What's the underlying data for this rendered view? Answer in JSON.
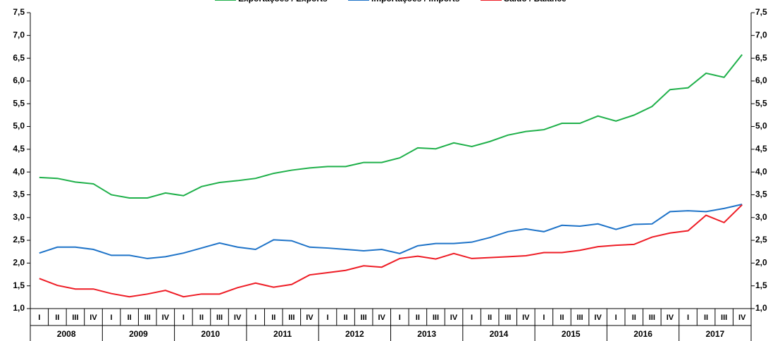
{
  "chart_data": {
    "type": "line",
    "categories": [
      "I",
      "II",
      "III",
      "IV",
      "I",
      "II",
      "III",
      "IV",
      "I",
      "II",
      "III",
      "IV",
      "I",
      "II",
      "III",
      "IV",
      "I",
      "II",
      "III",
      "IV",
      "I",
      "II",
      "III",
      "IV",
      "I",
      "II",
      "III",
      "IV",
      "I",
      "II",
      "III",
      "IV",
      "I",
      "II",
      "III",
      "IV",
      "I",
      "II",
      "III",
      "IV"
    ],
    "years": [
      "2008",
      "2009",
      "2010",
      "2011",
      "2012",
      "2013",
      "2014",
      "2015",
      "2016",
      "2017"
    ],
    "series": [
      {
        "name": "Exportações / Exports",
        "color": "#1fb04a",
        "values": [
          3.88,
          3.86,
          3.78,
          3.74,
          3.5,
          3.43,
          3.43,
          3.54,
          3.48,
          3.68,
          3.77,
          3.81,
          3.86,
          3.97,
          4.04,
          4.09,
          4.12,
          4.12,
          4.21,
          4.21,
          4.31,
          4.53,
          4.51,
          4.64,
          4.56,
          4.67,
          4.81,
          4.89,
          4.93,
          5.07,
          5.07,
          5.23,
          5.12,
          5.25,
          5.44,
          5.81,
          5.85,
          6.17,
          6.08,
          6.58
        ]
      },
      {
        "name": "Importações / Imports",
        "color": "#1e73c8",
        "values": [
          2.22,
          2.35,
          2.35,
          2.3,
          2.17,
          2.17,
          2.1,
          2.14,
          2.22,
          2.33,
          2.44,
          2.35,
          2.3,
          2.51,
          2.49,
          2.35,
          2.33,
          2.3,
          2.27,
          2.3,
          2.21,
          2.38,
          2.43,
          2.43,
          2.46,
          2.56,
          2.69,
          2.75,
          2.69,
          2.83,
          2.81,
          2.86,
          2.74,
          2.85,
          2.86,
          3.13,
          3.15,
          3.13,
          3.2,
          3.29
        ]
      },
      {
        "name": "Saldo / Balance",
        "color": "#ee1c25",
        "values": [
          1.66,
          1.51,
          1.43,
          1.43,
          1.33,
          1.26,
          1.32,
          1.4,
          1.26,
          1.32,
          1.32,
          1.46,
          1.56,
          1.47,
          1.53,
          1.74,
          1.79,
          1.84,
          1.94,
          1.91,
          2.1,
          2.15,
          2.09,
          2.21,
          2.1,
          2.12,
          2.14,
          2.16,
          2.23,
          2.23,
          2.28,
          2.36,
          2.39,
          2.41,
          2.57,
          2.66,
          2.71,
          3.05,
          2.89,
          3.28
        ]
      }
    ],
    "ylim": [
      1.0,
      7.5
    ],
    "yticks": [
      {
        "value": 1.0,
        "label": "1,0"
      },
      {
        "value": 1.5,
        "label": "1,5"
      },
      {
        "value": 2.0,
        "label": "2,0"
      },
      {
        "value": 2.5,
        "label": "2,5"
      },
      {
        "value": 3.0,
        "label": "3,0"
      },
      {
        "value": 3.5,
        "label": "3,5"
      },
      {
        "value": 4.0,
        "label": "4,0"
      },
      {
        "value": 4.5,
        "label": "4,5"
      },
      {
        "value": 5.0,
        "label": "5,0"
      },
      {
        "value": 5.5,
        "label": "5,5"
      },
      {
        "value": 6.0,
        "label": "6,0"
      },
      {
        "value": 6.5,
        "label": "6,5"
      },
      {
        "value": 7.0,
        "label": "7,0"
      },
      {
        "value": 7.5,
        "label": "7,5"
      }
    ],
    "legend": "top"
  }
}
